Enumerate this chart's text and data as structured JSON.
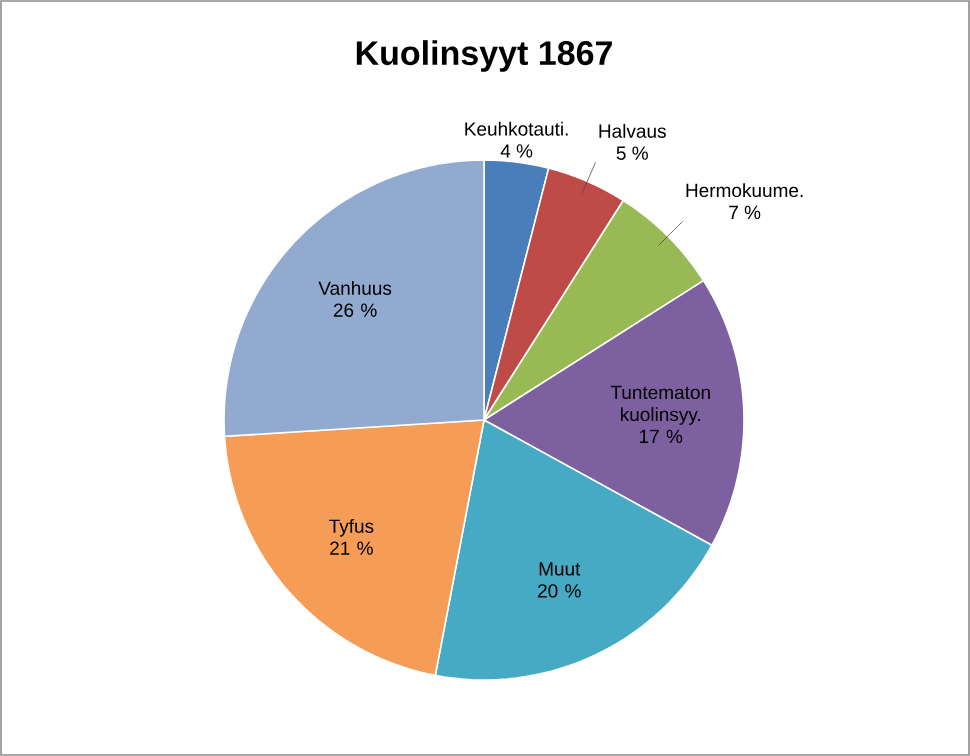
{
  "chart_data": {
    "type": "pie",
    "title": "Kuolinsyyt 1867",
    "categories": [
      "Keuhkotauti.",
      "Halvaus",
      "Hermokuume.",
      "Tuntematon kuolinsyy.",
      "Muut",
      "Tyfus",
      "Vanhuus"
    ],
    "values": [
      4,
      5,
      7,
      17,
      20,
      21,
      26
    ],
    "value_labels": [
      "4 %",
      "5 %",
      "7 %",
      "17 %",
      "20 %",
      "21 %",
      "26 %"
    ],
    "colors": [
      "#4a7ebb",
      "#be4b48",
      "#98b954",
      "#7d60a0",
      "#46aac5",
      "#f59d56",
      "#92a9d0"
    ]
  }
}
